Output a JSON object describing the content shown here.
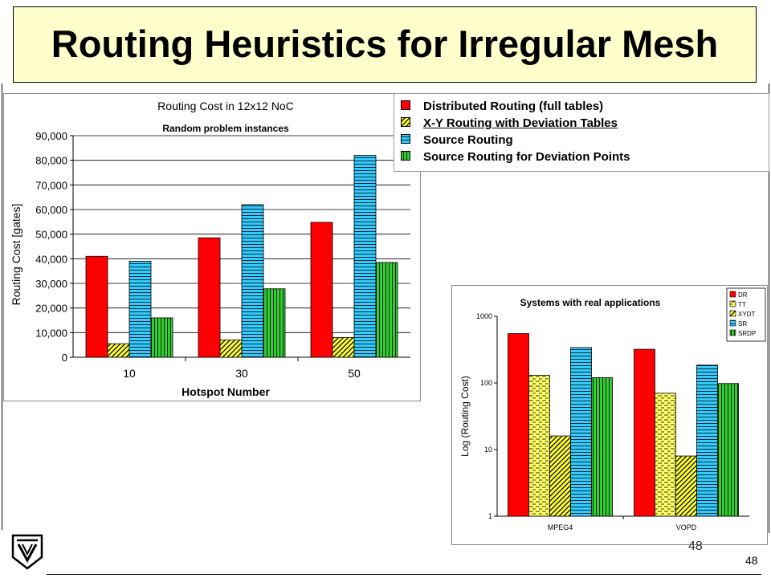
{
  "slide": {
    "title": "Routing Heuristics for Irregular Mesh",
    "page_number": "48",
    "page_number_ghost": "48"
  },
  "legend": {
    "entries": [
      {
        "label": "Distributed Routing (full tables)",
        "fill": "#ff0000",
        "pattern": "solid"
      },
      {
        "label": "X-Y Routing with Deviation Tables",
        "fill": "#ffff33",
        "pattern": "diagonal"
      },
      {
        "label": "Source Routing",
        "fill": "#33ccff",
        "pattern": "horizontal"
      },
      {
        "label": "Source Routing for Deviation Points",
        "fill": "#33cc33",
        "pattern": "vertical"
      }
    ]
  },
  "chart_data": [
    {
      "type": "bar",
      "title": "Routing Cost in 12x12 NoC",
      "subtitle": "Random problem instances",
      "xlabel": "Hotspot Number",
      "ylabel": "Routing Cost  [gates]",
      "categories": [
        "10",
        "30",
        "50"
      ],
      "yticks": [
        "0",
        "10,000",
        "20,000",
        "30,000",
        "40,000",
        "50,000",
        "60,000",
        "70,000",
        "80,000",
        "90,000"
      ],
      "ylim": [
        0,
        90000
      ],
      "grid": true,
      "series": [
        {
          "name": "Distributed Routing (full tables)",
          "values": [
            41000,
            48500,
            54800
          ],
          "fill": "#ff0000",
          "pattern": "solid"
        },
        {
          "name": "X-Y Routing with Deviation Tables",
          "values": [
            5500,
            7000,
            8000
          ],
          "fill": "#ffff33",
          "pattern": "diagonal"
        },
        {
          "name": "Source Routing",
          "values": [
            39000,
            62000,
            82000
          ],
          "fill": "#33ccff",
          "pattern": "horizontal"
        },
        {
          "name": "Source Routing for Deviation Points",
          "values": [
            16000,
            27800,
            38500
          ],
          "fill": "#33cc33",
          "pattern": "vertical"
        }
      ]
    },
    {
      "type": "bar",
      "title": "Systems with real applications",
      "ylabel": "Log (Routing Cost)",
      "scale": "log",
      "categories": [
        "MPEG4",
        "VOPD"
      ],
      "yticks": [
        "1",
        "10",
        "100",
        "1000"
      ],
      "ylim": [
        1,
        1000
      ],
      "legend_position": "top-right",
      "series": [
        {
          "name": "DR",
          "values": [
            550,
            320
          ],
          "fill": "#ff0000",
          "pattern": "solid"
        },
        {
          "name": "TT",
          "values": [
            130,
            70
          ],
          "fill": "#ffff66",
          "pattern": "dashed"
        },
        {
          "name": "XYDT",
          "values": [
            16,
            8
          ],
          "fill": "#ffff33",
          "pattern": "diagonal"
        },
        {
          "name": "SR",
          "values": [
            340,
            185
          ],
          "fill": "#33ccff",
          "pattern": "horizontal"
        },
        {
          "name": "SRDP",
          "values": [
            120,
            98
          ],
          "fill": "#33cc33",
          "pattern": "vertical"
        }
      ]
    }
  ]
}
